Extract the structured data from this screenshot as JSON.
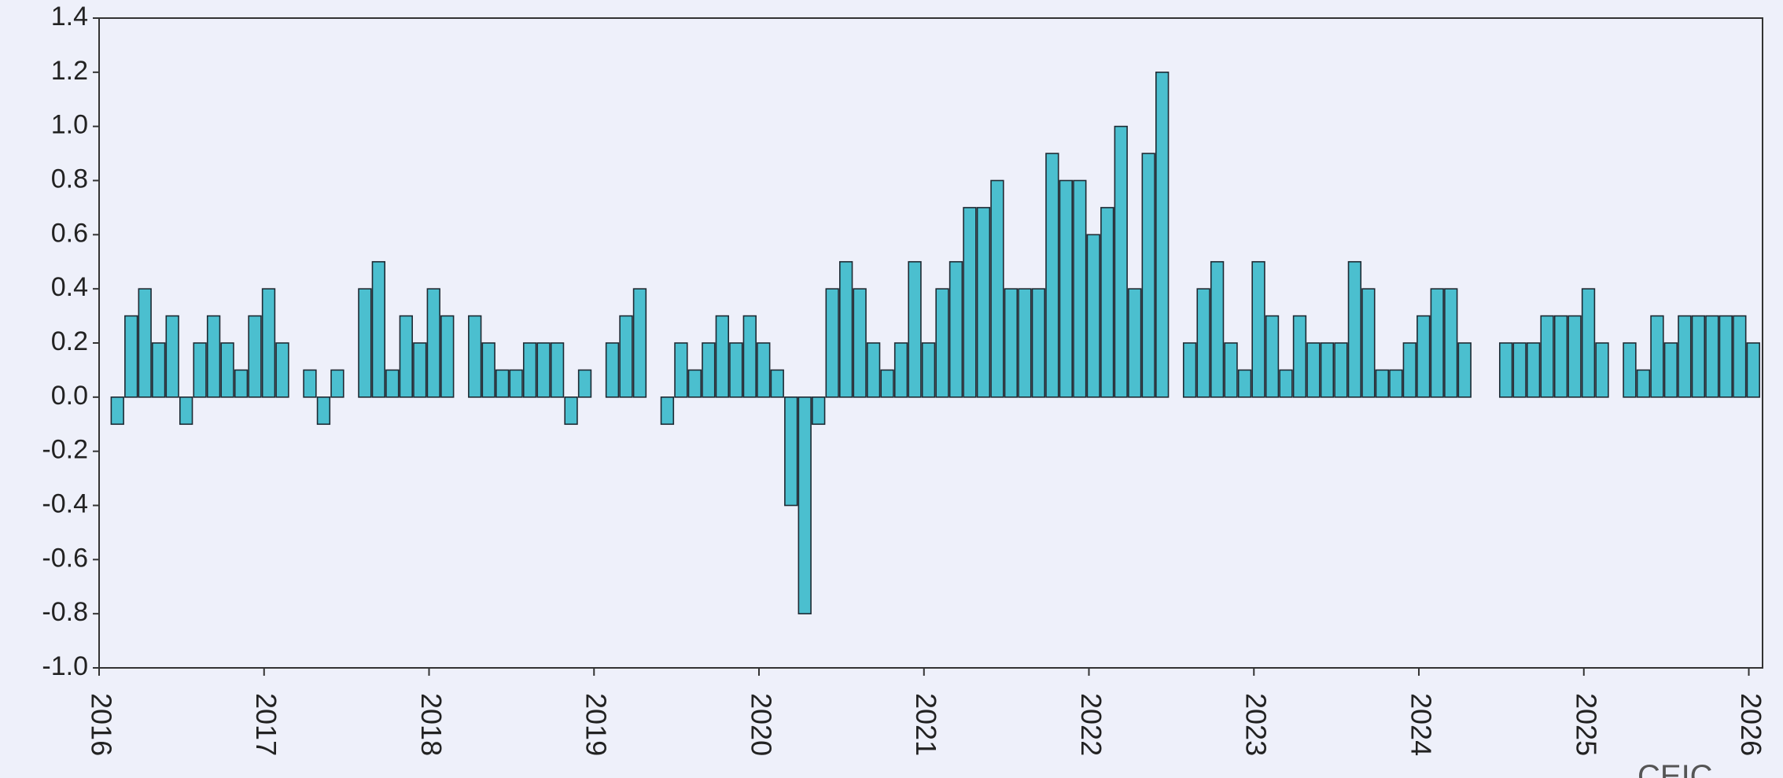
{
  "chart_data": {
    "type": "bar",
    "source": "CEIC",
    "x": [
      "2016-02",
      "2016-03",
      "2016-04",
      "2016-05",
      "2016-06",
      "2016-07",
      "2016-08",
      "2016-09",
      "2016-10",
      "2016-11",
      "2016-12",
      "2017-01",
      "2017-02",
      "2017-03",
      "2017-04",
      "2017-05",
      "2017-06",
      "2017-07",
      "2017-08",
      "2017-09",
      "2017-10",
      "2017-11",
      "2017-12",
      "2018-01",
      "2018-02",
      "2018-03",
      "2018-04",
      "2018-05",
      "2018-06",
      "2018-07",
      "2018-08",
      "2018-09",
      "2018-10",
      "2018-11",
      "2018-12",
      "2019-01",
      "2019-02",
      "2019-03",
      "2019-04",
      "2019-05",
      "2019-06",
      "2019-07",
      "2019-08",
      "2019-09",
      "2019-10",
      "2019-11",
      "2019-12",
      "2020-01",
      "2020-02",
      "2020-03",
      "2020-04",
      "2020-05",
      "2020-06",
      "2020-07",
      "2020-08",
      "2020-09",
      "2020-10",
      "2020-11",
      "2020-12",
      "2021-01",
      "2021-02",
      "2021-03",
      "2021-04",
      "2021-05",
      "2021-06",
      "2021-07",
      "2021-08",
      "2021-09",
      "2021-10",
      "2021-11",
      "2021-12",
      "2022-01",
      "2022-02",
      "2022-03",
      "2022-04",
      "2022-05",
      "2022-06",
      "2022-07",
      "2022-08",
      "2022-09",
      "2022-10",
      "2022-11",
      "2022-12",
      "2023-01",
      "2023-02",
      "2023-03",
      "2023-04",
      "2023-05",
      "2023-06",
      "2023-07",
      "2023-08",
      "2023-09",
      "2023-10",
      "2023-11",
      "2023-12",
      "2024-01",
      "2024-02",
      "2024-03",
      "2024-04",
      "2024-05",
      "2024-06",
      "2024-07",
      "2024-08",
      "2024-09",
      "2024-10",
      "2024-11",
      "2024-12",
      "2025-01",
      "2025-02",
      "2025-03",
      "2025-04",
      "2025-05",
      "2025-06",
      "2025-07",
      "2025-08",
      "2025-09",
      "2025-10",
      "2025-11",
      "2025-12",
      "2026-01"
    ],
    "values": [
      -0.1,
      0.3,
      0.4,
      0.2,
      0.3,
      -0.1,
      0.2,
      0.3,
      0.2,
      0.1,
      0.3,
      0.4,
      0.2,
      null,
      0.1,
      -0.1,
      0.1,
      null,
      0.4,
      0.5,
      0.1,
      0.3,
      0.2,
      0.4,
      0.3,
      null,
      0.3,
      0.2,
      0.1,
      0.1,
      0.2,
      0.2,
      0.2,
      -0.1,
      0.1,
      null,
      0.2,
      0.3,
      0.4,
      null,
      -0.1,
      0.2,
      0.1,
      0.2,
      0.3,
      0.2,
      0.3,
      0.2,
      0.1,
      -0.4,
      -0.8,
      -0.1,
      0.4,
      0.5,
      0.4,
      0.2,
      0.1,
      0.2,
      0.5,
      0.2,
      0.4,
      0.5,
      0.7,
      0.7,
      0.8,
      0.4,
      0.4,
      0.4,
      0.9,
      0.8,
      0.8,
      0.6,
      0.7,
      1.0,
      0.4,
      0.9,
      1.2,
      null,
      0.2,
      0.4,
      0.5,
      0.2,
      0.1,
      0.5,
      0.3,
      0.1,
      0.3,
      0.2,
      0.2,
      0.2,
      0.5,
      0.4,
      0.1,
      0.1,
      0.2,
      0.3,
      0.4,
      0.4,
      0.2,
      null,
      null,
      0.2,
      0.2,
      0.2,
      0.3,
      0.3,
      0.3,
      0.4,
      0.2,
      null,
      0.2,
      0.1,
      0.3,
      0.2,
      0.3,
      0.3,
      0.3,
      0.3,
      0.3,
      0.2
    ],
    "color": "#4bbfcf",
    "edgecolor": "#1f2a33",
    "xlim": [
      "2016-01",
      "2026-02"
    ],
    "xticks": [
      {
        "value": "2016-01",
        "label": "2016"
      },
      {
        "value": "2017-01",
        "label": "2017"
      },
      {
        "value": "2018-01",
        "label": "2018"
      },
      {
        "value": "2019-01",
        "label": "2019"
      },
      {
        "value": "2020-01",
        "label": "2020"
      },
      {
        "value": "2021-01",
        "label": "2021"
      },
      {
        "value": "2022-01",
        "label": "2022"
      },
      {
        "value": "2023-01",
        "label": "2023"
      },
      {
        "value": "2024-01",
        "label": "2024"
      },
      {
        "value": "2025-01",
        "label": "2025"
      },
      {
        "value": "2026-01",
        "label": "2026"
      }
    ],
    "ylim": [
      -1.0,
      1.4
    ],
    "yticks": [
      {
        "value": -1.0,
        "label": "-1.0"
      },
      -0.8,
      -0.6,
      -0.4,
      -0.2,
      {
        "value": 0,
        "label": "0.0"
      },
      0.2,
      0.4,
      0.6,
      0.8,
      {
        "value": 1.0,
        "label": "1.0"
      },
      1.2,
      1.4
    ],
    "grid": false
  }
}
